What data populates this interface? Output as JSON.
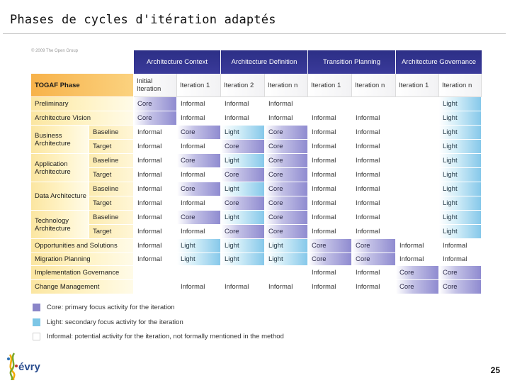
{
  "slide": {
    "title": "Phases de cycles d'itération adaptés",
    "copyright": "© 2009 The Open Group",
    "page_number": "25",
    "logo_text": "évry"
  },
  "phases": [
    {
      "label": "Architecture Context"
    },
    {
      "label": "Architecture Definition"
    },
    {
      "label": "Transition Planning"
    },
    {
      "label": "Architecture Governance"
    }
  ],
  "iterations": [
    "Initial Iteration",
    "Iteration 1",
    "Iteration 2",
    "Iteration n",
    "Iteration 1",
    "Iteration n",
    "Iteration 1",
    "Iteration n"
  ],
  "corner_label": "TOGAF Phase",
  "rows": [
    {
      "label": "Preliminary",
      "sub": "",
      "cells": [
        "Core",
        "Informal",
        "Informal",
        "Informal",
        "",
        "",
        "",
        "Light"
      ]
    },
    {
      "label": "Architecture Vision",
      "sub": "",
      "cells": [
        "Core",
        "Informal",
        "Informal",
        "Informal",
        "Informal",
        "Informal",
        "",
        "Light"
      ]
    },
    {
      "label": "Business Architecture",
      "sub": "Baseline",
      "cells": [
        "Informal",
        "Core",
        "Light",
        "Core",
        "Informal",
        "Informal",
        "",
        "Light"
      ]
    },
    {
      "label": "",
      "sub": "Target",
      "cells": [
        "Informal",
        "Informal",
        "Core",
        "Core",
        "Informal",
        "Informal",
        "",
        "Light"
      ]
    },
    {
      "label": "Application Architecture",
      "sub": "Baseline",
      "cells": [
        "Informal",
        "Core",
        "Light",
        "Core",
        "Informal",
        "Informal",
        "",
        "Light"
      ]
    },
    {
      "label": "",
      "sub": "Target",
      "cells": [
        "Informal",
        "Informal",
        "Core",
        "Core",
        "Informal",
        "Informal",
        "",
        "Light"
      ]
    },
    {
      "label": "Data Architecture",
      "sub": "Baseline",
      "cells": [
        "Informal",
        "Core",
        "Light",
        "Core",
        "Informal",
        "Informal",
        "",
        "Light"
      ]
    },
    {
      "label": "",
      "sub": "Target",
      "cells": [
        "Informal",
        "Informal",
        "Core",
        "Core",
        "Informal",
        "Informal",
        "",
        "Light"
      ]
    },
    {
      "label": "Technology Architecture",
      "sub": "Baseline",
      "cells": [
        "Informal",
        "Core",
        "Light",
        "Core",
        "Informal",
        "Informal",
        "",
        "Light"
      ]
    },
    {
      "label": "",
      "sub": "Target",
      "cells": [
        "Informal",
        "Informal",
        "Core",
        "Core",
        "Informal",
        "Informal",
        "",
        "Light"
      ]
    },
    {
      "label": "Opportunities and Solutions",
      "sub": "",
      "cells": [
        "Informal",
        "Light",
        "Light",
        "Light",
        "Core",
        "Core",
        "Informal",
        "Informal"
      ]
    },
    {
      "label": "Migration Planning",
      "sub": "",
      "cells": [
        "Informal",
        "Light",
        "Light",
        "Light",
        "Core",
        "Core",
        "Informal",
        "Informal"
      ]
    },
    {
      "label": "Implementation Governance",
      "sub": "",
      "cells": [
        "",
        "",
        "",
        "",
        "Informal",
        "Informal",
        "Core",
        "Core"
      ]
    },
    {
      "label": "Change Management",
      "sub": "",
      "cells": [
        "",
        "Informal",
        "Informal",
        "Informal",
        "Informal",
        "Informal",
        "Core",
        "Core"
      ]
    }
  ],
  "legend": [
    {
      "key": "core",
      "text": "Core: primary focus activity for the iteration"
    },
    {
      "key": "light",
      "text": "Light: secondary focus activity for the iteration"
    },
    {
      "key": "informal",
      "text": "Informal: potential activity for the iteration, not formally mentioned in the method"
    }
  ],
  "colors": {
    "phase_header": "#2c2f86",
    "core": "#8f8bd0",
    "light": "#86c8ea",
    "label_bg": "#fbe6a1",
    "corner": "#f7b24a"
  }
}
